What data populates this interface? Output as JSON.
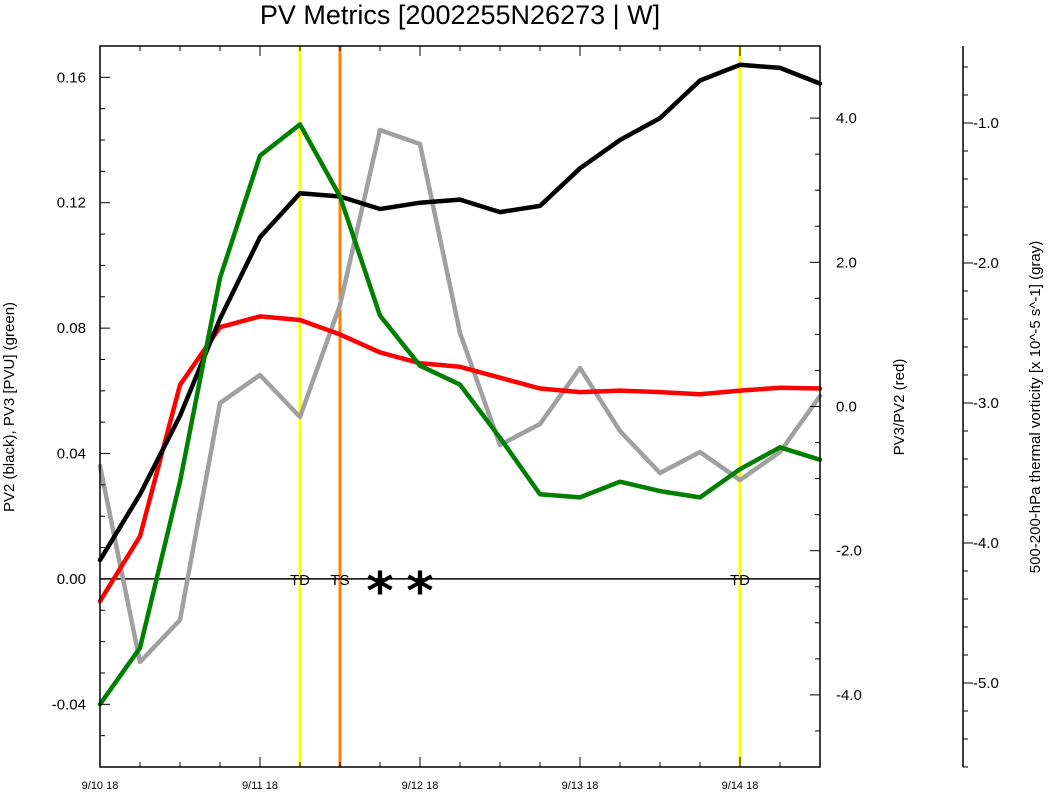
{
  "chart_data": {
    "type": "line",
    "title": "PV Metrics [2002255N26273 | W]",
    "x_labels": [
      "9/10 18",
      "9/11 18",
      "9/12 18",
      "9/13 18",
      "9/14 18"
    ],
    "x_range_days": [
      0,
      4.5
    ],
    "y_left": {
      "label": "PV2 (black), PV3 [PVU] (green)",
      "range": [
        -0.06,
        0.17
      ],
      "ticks": [
        -0.04,
        0.0,
        0.04,
        0.08,
        0.12,
        0.16
      ],
      "tick_labels": [
        "-0.04",
        "0.00",
        "0.04",
        "0.08",
        "0.12",
        "0.16"
      ]
    },
    "y_right": {
      "label": "PV3/PV2 (red)",
      "range": [
        -5.0,
        5.0
      ],
      "ticks": [
        -4.0,
        -2.0,
        0.0,
        2.0,
        4.0
      ],
      "tick_labels": [
        "-4.0",
        "-2.0",
        "0.0",
        "2.0",
        "4.0"
      ]
    },
    "y_far": {
      "label": "500-200-hPa thermal vorticity [x 10^-5 s^-1] (gray)",
      "range": [
        -5.6,
        -0.45
      ],
      "ticks": [
        -5.0,
        -4.0,
        -3.0,
        -2.0,
        -1.0
      ],
      "tick_labels": [
        "-5.0",
        "-4.0",
        "-3.0",
        "-2.0",
        "-1.0"
      ]
    },
    "x": [
      0,
      0.25,
      0.5,
      0.75,
      1.0,
      1.25,
      1.5,
      1.75,
      2.0,
      2.25,
      2.5,
      2.75,
      3.0,
      3.25,
      3.5,
      3.75,
      4.0,
      4.25,
      4.5
    ],
    "series": [
      {
        "name": "PV2",
        "axis": "left",
        "color": "#000000",
        "values": [
          0.006,
          0.027,
          0.052,
          0.083,
          0.109,
          0.123,
          0.122,
          0.118,
          0.12,
          0.121,
          0.117,
          0.119,
          0.131,
          0.14,
          0.147,
          0.159,
          0.164,
          0.163,
          0.158
        ]
      },
      {
        "name": "PV3",
        "axis": "left",
        "color": "#008000",
        "values": [
          -0.04,
          -0.022,
          0.031,
          0.096,
          0.135,
          0.145,
          0.122,
          0.084,
          0.068,
          0.062,
          0.045,
          0.027,
          0.026,
          0.031,
          0.028,
          0.026,
          0.035,
          0.042,
          0.038
        ]
      },
      {
        "name": "PV3/PV2",
        "axis": "right",
        "color": "#ff0000",
        "values": [
          -2.7,
          -1.8,
          0.3,
          1.1,
          1.25,
          1.2,
          1.0,
          0.75,
          0.6,
          0.55,
          0.4,
          0.25,
          0.2,
          0.22,
          0.2,
          0.17,
          0.22,
          0.26,
          0.25
        ]
      },
      {
        "name": "thermal vorticity",
        "axis": "far",
        "color": "#a0a0a0",
        "values": [
          -3.45,
          -4.85,
          -4.55,
          -3.0,
          -2.8,
          -3.1,
          -2.3,
          -1.05,
          -1.15,
          -2.5,
          -3.3,
          -3.15,
          -2.75,
          -3.2,
          -3.5,
          -3.35,
          -3.55,
          -3.35,
          -2.95
        ]
      }
    ],
    "event_lines": [
      {
        "x": 1.25,
        "color": "#ffff00",
        "label": "TD"
      },
      {
        "x": 1.5,
        "color": "#ff8000",
        "label": "TS"
      },
      {
        "x": 4.0,
        "color": "#ffff00",
        "label": "TD"
      }
    ],
    "markers": [
      {
        "x": 1.75,
        "symbol": "*"
      },
      {
        "x": 2.0,
        "symbol": "*"
      }
    ],
    "zero_line": 0.0
  }
}
